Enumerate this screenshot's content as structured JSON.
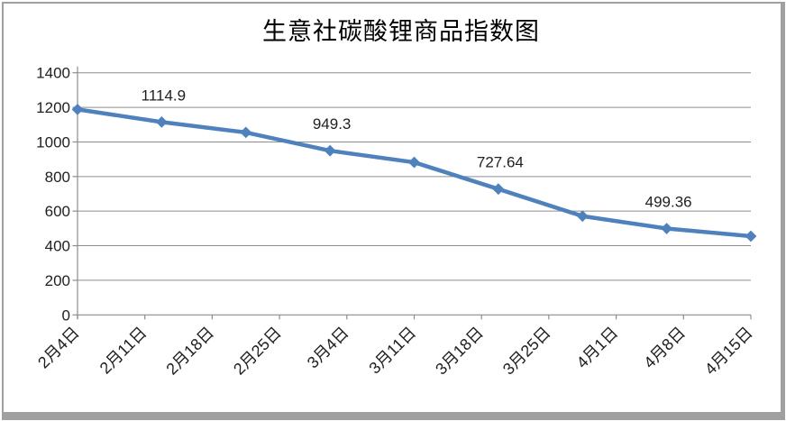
{
  "chart_data": {
    "type": "line",
    "title": "生意社碳酸锂商品指数图",
    "categories": [
      "2月4日",
      "2月11日",
      "2月18日",
      "2月25日",
      "3月4日",
      "3月11日",
      "3月18日",
      "3月25日",
      "4月1日",
      "4月8日",
      "4月15日"
    ],
    "values": [
      1188,
      1114.9,
      1055,
      949.3,
      882,
      727.64,
      571,
      499.36,
      455
    ],
    "data_labels": [
      "",
      "1114.9",
      "",
      "949.3",
      "",
      "727.64",
      "",
      "499.36",
      ""
    ],
    "xlabel": "",
    "ylabel": "",
    "ylim": [
      0,
      1400
    ],
    "ytick_step": 200,
    "ytick_labels": [
      "0",
      "200",
      "400",
      "600",
      "800",
      "1000",
      "1200",
      "1400"
    ],
    "legend": "none",
    "grid": "horizontal",
    "marker": "diamond",
    "layout_hints": {
      "points_span": "full-plot-width",
      "category_labels_span": "full-plot-width",
      "x_label_rotation_deg": -45
    },
    "colors": {
      "line": "#4F81BD",
      "marker": "#4F81BD",
      "grid": "#8C8C8C",
      "axis": "#8C8C8C",
      "text": "#1F1F1F",
      "title_text": "#000000",
      "frame": "#A0A0A0",
      "background": "#FFFFFF"
    }
  }
}
